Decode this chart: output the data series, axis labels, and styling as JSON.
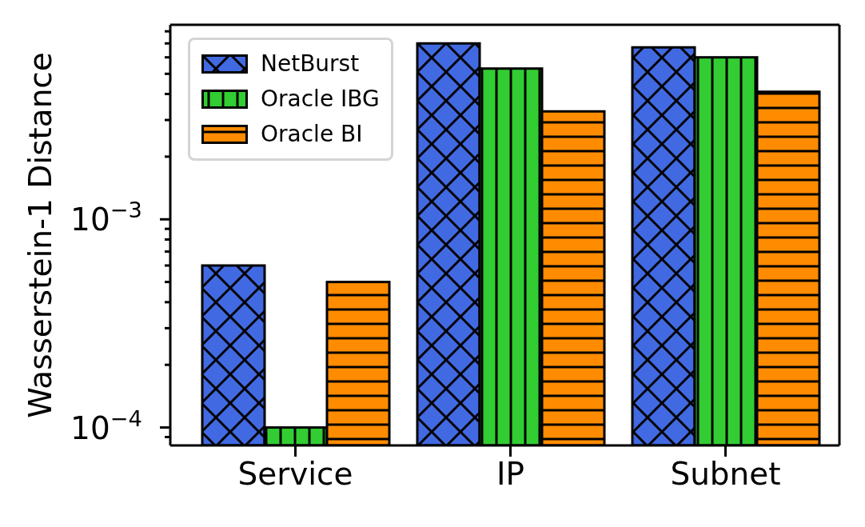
{
  "chart_data": {
    "type": "bar",
    "ylabel": "Wasserstein-1 Distance",
    "categories": [
      "Service",
      "IP",
      "Subnet"
    ],
    "series": [
      {
        "name": "NetBurst",
        "color": "#4169e1",
        "values": [
          0.0006,
          0.007,
          0.0067
        ]
      },
      {
        "name": "Oracle IBG",
        "color": "#32cd32",
        "values": [
          0.0001,
          0.0053,
          0.006
        ]
      },
      {
        "name": "Oracle BI",
        "color": "#ff8c00",
        "values": [
          0.0005,
          0.0033,
          0.0041
        ]
      }
    ],
    "log": true,
    "ylim": [
      8.2e-05,
      0.0086
    ],
    "yticks": [
      {
        "value": 9e-05,
        "label": null
      },
      {
        "value": 0.0001,
        "label": "10$^{−4}$"
      },
      {
        "value": 0.0002,
        "label": null
      },
      {
        "value": 0.0003,
        "label": null
      },
      {
        "value": 0.0004,
        "label": null
      },
      {
        "value": 0.0005,
        "label": null
      },
      {
        "value": 0.0006,
        "label": null
      },
      {
        "value": 0.0007,
        "label": null
      },
      {
        "value": 0.0008,
        "label": null
      },
      {
        "value": 0.0009,
        "label": null
      },
      {
        "value": 0.001,
        "label": "10$^{−3}$"
      },
      {
        "value": 0.002,
        "label": null
      },
      {
        "value": 0.003,
        "label": null
      },
      {
        "value": 0.004,
        "label": null
      },
      {
        "value": 0.005,
        "label": null
      },
      {
        "value": 0.006,
        "label": null
      },
      {
        "value": 0.007,
        "label": null
      },
      {
        "value": 0.008,
        "label": null
      }
    ],
    "legend": "top left"
  }
}
